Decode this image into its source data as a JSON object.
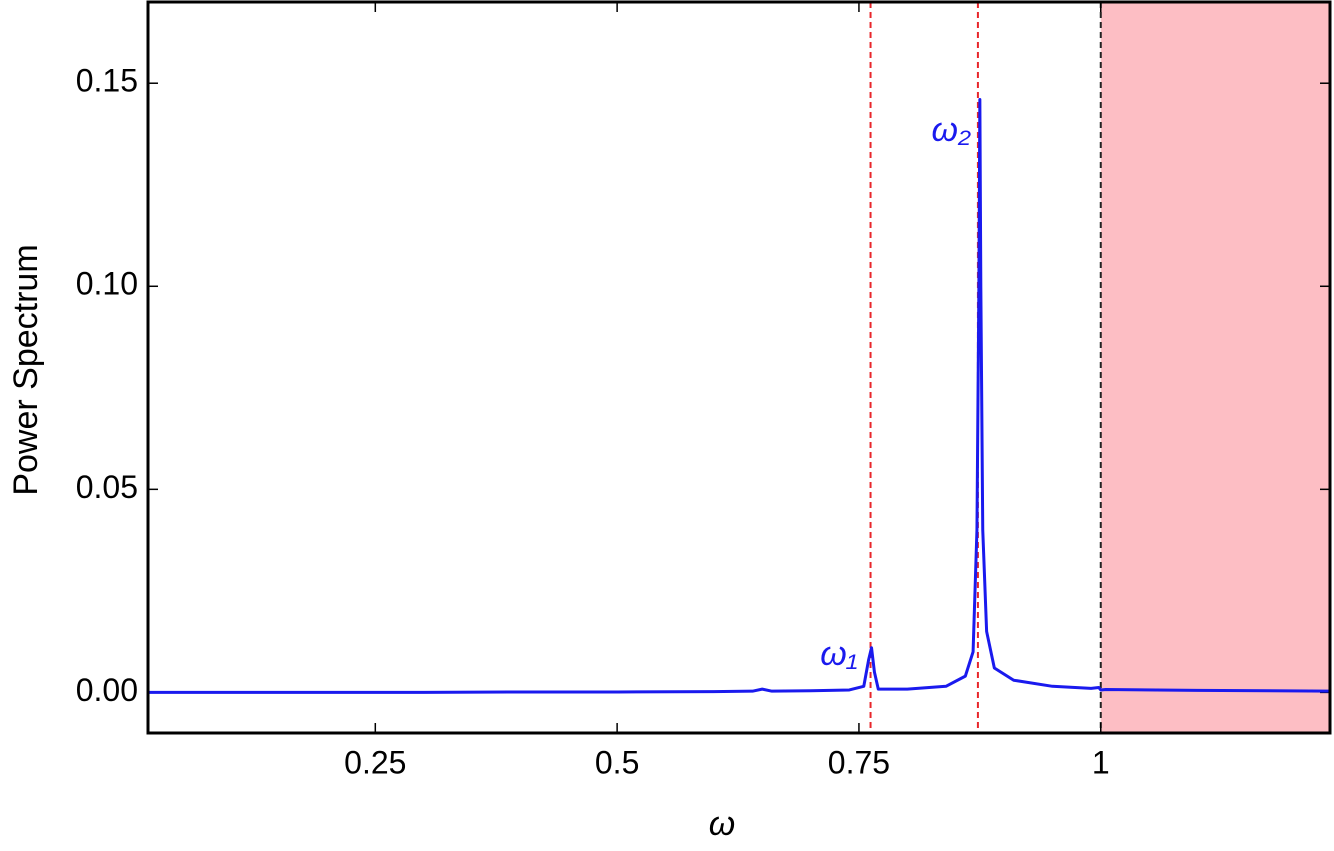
{
  "chart_data": {
    "type": "line",
    "x_label": "ω",
    "y_label": "Power Spectrum",
    "xlim": [
      0.015,
      1.237
    ],
    "ylim": [
      -0.01,
      0.17
    ],
    "xticks": [
      0.25,
      0.5,
      0.75,
      1
    ],
    "yticks": [
      {
        "value": 0,
        "label": "0.00"
      },
      {
        "value": 0.05,
        "label": "0.05"
      },
      {
        "value": 0.1,
        "label": "0.10"
      },
      {
        "value": 0.15,
        "label": "0.15"
      }
    ],
    "x": [
      0.015,
      0.1,
      0.2,
      0.3,
      0.4,
      0.5,
      0.6,
      0.64,
      0.65,
      0.66,
      0.7,
      0.74,
      0.755,
      0.76,
      0.763,
      0.766,
      0.77,
      0.8,
      0.84,
      0.86,
      0.868,
      0.872,
      0.874,
      0.875,
      0.876,
      0.878,
      0.882,
      0.89,
      0.91,
      0.95,
      0.99,
      0.998,
      1.0,
      1.005,
      1.1,
      1.237
    ],
    "series": [
      {
        "color": "#1a1aee",
        "values": [
          0,
          0,
          0,
          0,
          0.0001,
          0.0001,
          0.0002,
          0.0003,
          0.0008,
          0.0003,
          0.0004,
          0.0006,
          0.0015,
          0.008,
          0.011,
          0.005,
          0.0008,
          0.0008,
          0.0015,
          0.004,
          0.01,
          0.04,
          0.1,
          0.146,
          0.1,
          0.04,
          0.015,
          0.006,
          0.003,
          0.0015,
          0.001,
          0.0012,
          0.0006,
          0.0007,
          0.0005,
          0.0003
        ]
      }
    ],
    "vlines": [
      {
        "x": 0.762,
        "color": "#e8262b"
      },
      {
        "x": 0.873,
        "color": "#e8262b"
      },
      {
        "x": 1,
        "color": "#222222"
      }
    ],
    "shaded_from": 1,
    "shade_color": "#fdbec4",
    "annotations": [
      {
        "text": "ω₁",
        "x": 0.71,
        "y": 0.009
      },
      {
        "text": "ω₂",
        "x": 0.825,
        "y": 0.138
      }
    ]
  }
}
